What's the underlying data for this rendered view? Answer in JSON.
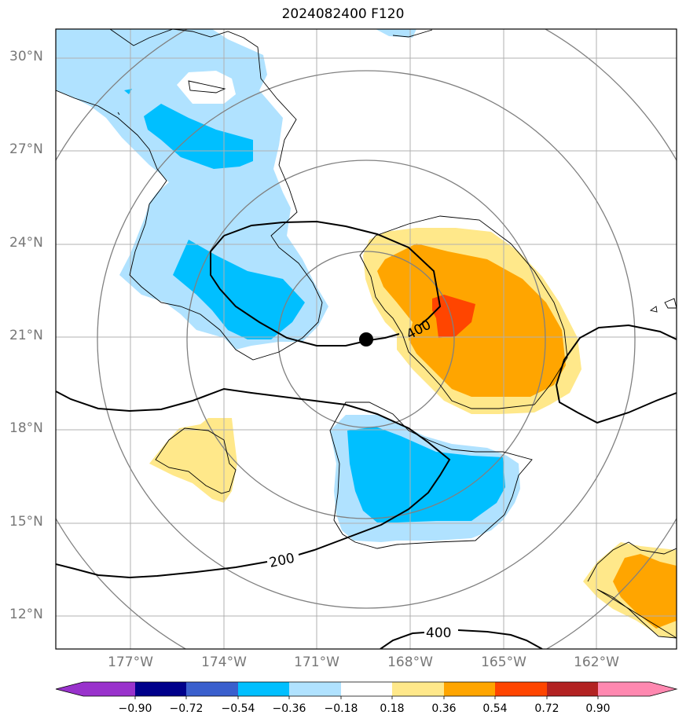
{
  "title": "2024082400 F120",
  "lat_labels": [
    "30°N",
    "27°N",
    "24°N",
    "21°N",
    "18°N",
    "15°N",
    "12°N"
  ],
  "lon_labels": [
    "177°W",
    "174°W",
    "171°W",
    "168°W",
    "165°W",
    "162°W"
  ],
  "contour_labels": {
    "c400a": "400",
    "c200": "200",
    "c400b": "400"
  },
  "colorbar": {
    "ticks": [
      "−0.90",
      "−0.72",
      "−0.54",
      "−0.36",
      "−0.18",
      "0.18",
      "0.36",
      "0.54",
      "0.72",
      "0.90"
    ],
    "colors": [
      "#9932cc",
      "#00008b",
      "#3a5fcd",
      "#00bfff",
      "#b0e2ff",
      "#ffffff",
      "#ffe88a",
      "#ffa500",
      "#ff4500",
      "#b22222",
      "#ff88b0"
    ]
  },
  "palette": {
    "light_blue": "#b0e2ff",
    "blue": "#00bfff",
    "yellow": "#ffe88a",
    "orange": "#ffa500",
    "red_orange": "#ff4500",
    "grid": "#b0b0b0",
    "range_ring": "#808080"
  }
}
